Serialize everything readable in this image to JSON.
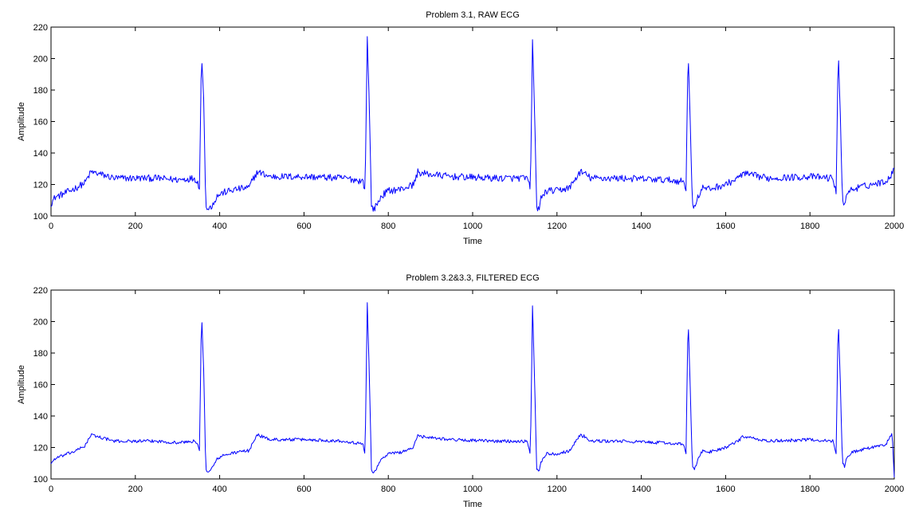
{
  "figure": {
    "background": "#ffffff",
    "trace_color": "#0000ff"
  },
  "chart_data": [
    {
      "type": "line",
      "title": "Problem 3.1, RAW ECG",
      "xlabel": "Time",
      "ylabel": "Amplitude",
      "xlim": [
        0,
        2000
      ],
      "ylim": [
        100,
        220
      ],
      "xticks": [
        0,
        200,
        400,
        600,
        800,
        1000,
        1200,
        1400,
        1600,
        1800,
        2000
      ],
      "yticks": [
        100,
        120,
        140,
        160,
        180,
        200,
        220
      ],
      "grid": false,
      "noise": 2.2,
      "series": [
        {
          "color": "#0000ff",
          "x": [
            0,
            10,
            30,
            60,
            80,
            95,
            110,
            150,
            200,
            250,
            300,
            340,
            347,
            352,
            357,
            362,
            367,
            372,
            380,
            395,
            410,
            440,
            470,
            480,
            490,
            520,
            600,
            700,
            740,
            745,
            750,
            755,
            760,
            765,
            770,
            785,
            800,
            830,
            860,
            870,
            880,
            950,
            1050,
            1130,
            1137,
            1142,
            1147,
            1152,
            1157,
            1162,
            1175,
            1200,
            1230,
            1255,
            1265,
            1280,
            1350,
            1450,
            1500,
            1506,
            1511,
            1516,
            1521,
            1526,
            1531,
            1545,
            1560,
            1600,
            1630,
            1640,
            1700,
            1800,
            1855,
            1862,
            1867,
            1872,
            1877,
            1882,
            1887,
            1900,
            1930,
            1980,
            2000
          ],
          "y": [
            108,
            112,
            114,
            118,
            121,
            128,
            127,
            124,
            124,
            124,
            123,
            124,
            122,
            117,
            205,
            175,
            106,
            104,
            106,
            113,
            115,
            117,
            118,
            124,
            128,
            125,
            125,
            124,
            122,
            116,
            214,
            170,
            106,
            104,
            106,
            113,
            116,
            117,
            120,
            128,
            127,
            125,
            124,
            124,
            116,
            212,
            165,
            106,
            104,
            111,
            116,
            116,
            118,
            128,
            127,
            124,
            124,
            123,
            122,
            116,
            206,
            160,
            108,
            106,
            110,
            118,
            117,
            120,
            124,
            127,
            124,
            125,
            124,
            114,
            205,
            165,
            110,
            108,
            114,
            117,
            119,
            122,
            129
          ]
        }
      ]
    },
    {
      "type": "line",
      "title": "Problem 3.2&3.3, FILTERED ECG",
      "xlabel": "Time",
      "ylabel": "Amplitude",
      "xlim": [
        0,
        2000
      ],
      "ylim": [
        100,
        220
      ],
      "xticks": [
        0,
        200,
        400,
        600,
        800,
        1000,
        1200,
        1400,
        1600,
        1800,
        2000
      ],
      "yticks": [
        100,
        120,
        140,
        160,
        180,
        200,
        220
      ],
      "grid": false,
      "noise": 1.0,
      "series": [
        {
          "color": "#0000ff",
          "x": [
            0,
            10,
            30,
            60,
            80,
            95,
            110,
            150,
            200,
            250,
            300,
            340,
            347,
            352,
            357,
            362,
            367,
            372,
            380,
            395,
            410,
            440,
            470,
            480,
            490,
            520,
            600,
            700,
            740,
            745,
            750,
            755,
            760,
            765,
            770,
            785,
            800,
            830,
            860,
            870,
            880,
            950,
            1050,
            1130,
            1137,
            1142,
            1147,
            1152,
            1157,
            1162,
            1175,
            1200,
            1230,
            1255,
            1265,
            1280,
            1350,
            1450,
            1500,
            1506,
            1511,
            1516,
            1521,
            1526,
            1531,
            1545,
            1560,
            1600,
            1630,
            1640,
            1700,
            1800,
            1855,
            1862,
            1867,
            1872,
            1877,
            1882,
            1887,
            1900,
            1930,
            1980,
            1995,
            2000
          ],
          "y": [
            110,
            113,
            115,
            118,
            121,
            128,
            127,
            124,
            124,
            124,
            123,
            124,
            122,
            118,
            206,
            170,
            106,
            105,
            106,
            113,
            115,
            117,
            118,
            124,
            128,
            125,
            125,
            124,
            122,
            115,
            212,
            166,
            106,
            104,
            106,
            113,
            116,
            117,
            120,
            128,
            127,
            125,
            124,
            124,
            115,
            210,
            162,
            106,
            104,
            111,
            116,
            116,
            118,
            128,
            127,
            124,
            124,
            123,
            122,
            116,
            204,
            158,
            108,
            106,
            110,
            118,
            117,
            120,
            124,
            127,
            124,
            125,
            124,
            116,
            203,
            162,
            110,
            108,
            114,
            117,
            119,
            122,
            129,
            101
          ]
        }
      ]
    }
  ]
}
